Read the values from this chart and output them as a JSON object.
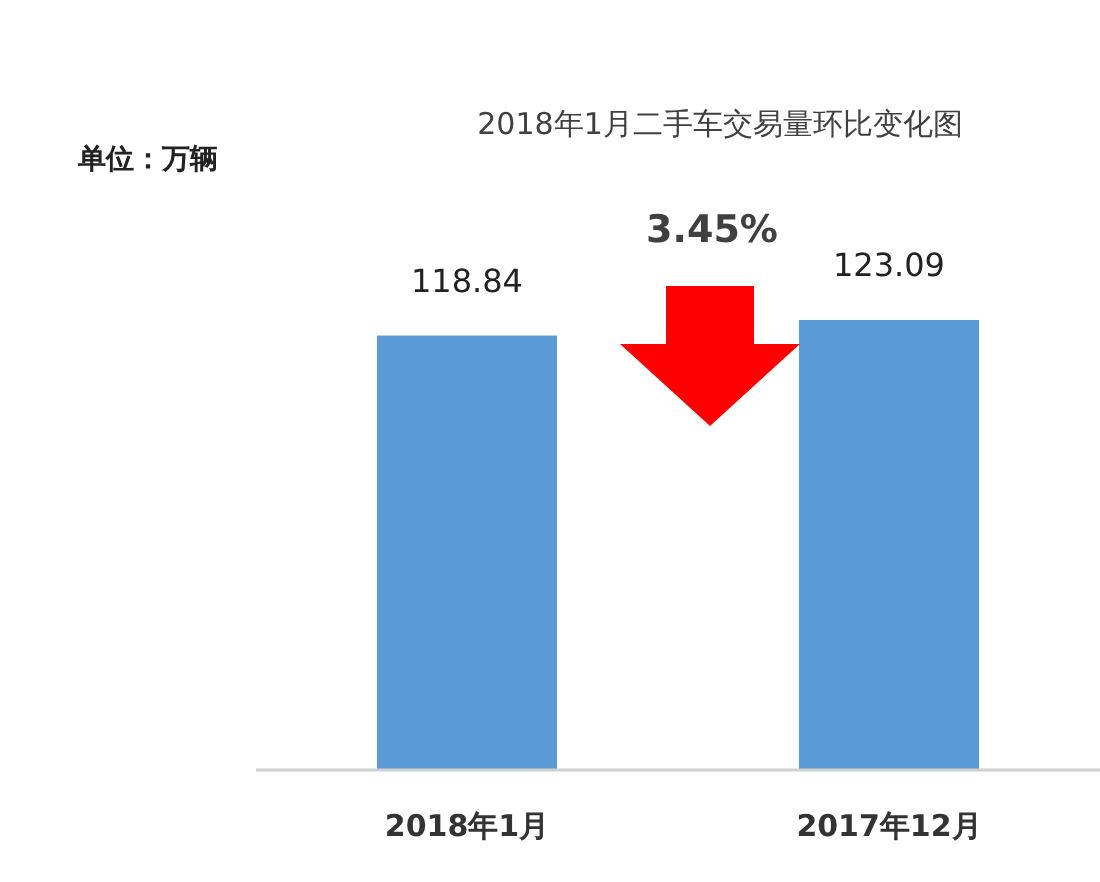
{
  "chart_data": {
    "type": "bar",
    "title": "2018年1月二手车交易量环比变化图",
    "categories": [
      "2018年1月",
      "2017年12月"
    ],
    "values": [
      118.84,
      123.09
    ],
    "color": "#5b9bd5",
    "data_labels": true,
    "annotations": [
      "单位：万辆",
      "3.45%"
    ]
  }
}
